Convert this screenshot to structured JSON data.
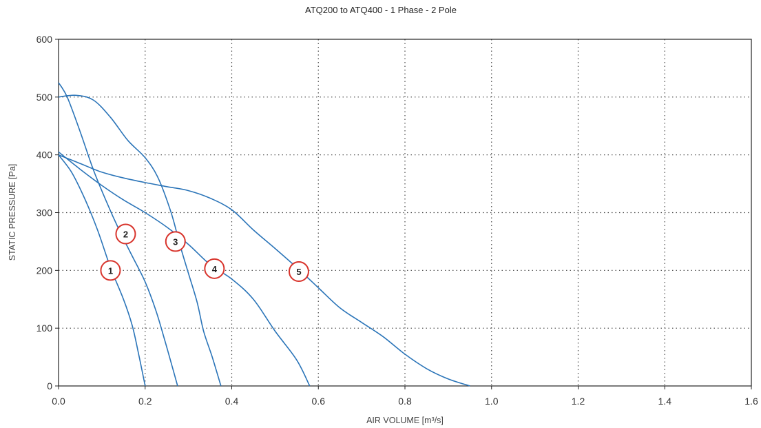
{
  "chart_data": {
    "type": "line",
    "title": "ATQ200 to ATQ400 - 1 Phase - 2 Pole",
    "xlabel": "AIR VOLUME [m³/s]",
    "ylabel": "STATIC PRESSURE [Pa]",
    "xlim": [
      0,
      1.6
    ],
    "ylim": [
      0,
      600
    ],
    "xticks": [
      0,
      0.2,
      0.4,
      0.6,
      0.8,
      1.0,
      1.2,
      1.4,
      1.6
    ],
    "yticks": [
      0,
      100,
      200,
      300,
      400,
      500,
      600
    ],
    "xtick_labels": [
      "0.0",
      "0.2",
      "0.4",
      "0.6",
      "0.8",
      "1.0",
      "1.2",
      "1.4",
      "1.6"
    ],
    "ytick_labels": [
      "0",
      "100",
      "200",
      "300",
      "400",
      "500",
      "600"
    ],
    "grid": true,
    "line_color": "#2a74b8",
    "marker_color": "#d8342c",
    "series": [
      {
        "name": "1",
        "label_at": [
          0.12,
          200
        ],
        "points": [
          [
            0,
            400
          ],
          [
            0.03,
            370
          ],
          [
            0.06,
            325
          ],
          [
            0.09,
            270
          ],
          [
            0.12,
            205
          ],
          [
            0.15,
            150
          ],
          [
            0.17,
            105
          ],
          [
            0.185,
            55
          ],
          [
            0.2,
            0
          ]
        ]
      },
      {
        "name": "2",
        "label_at": [
          0.155,
          263
        ],
        "points": [
          [
            0,
            525
          ],
          [
            0.02,
            500
          ],
          [
            0.05,
            440
          ],
          [
            0.08,
            375
          ],
          [
            0.11,
            320
          ],
          [
            0.14,
            270
          ],
          [
            0.17,
            225
          ],
          [
            0.2,
            180
          ],
          [
            0.225,
            130
          ],
          [
            0.245,
            80
          ],
          [
            0.262,
            35
          ],
          [
            0.275,
            0
          ]
        ]
      },
      {
        "name": "3",
        "label_at": [
          0.27,
          250
        ],
        "points": [
          [
            0,
            500
          ],
          [
            0.04,
            503
          ],
          [
            0.08,
            495
          ],
          [
            0.12,
            465
          ],
          [
            0.16,
            425
          ],
          [
            0.2,
            395
          ],
          [
            0.23,
            360
          ],
          [
            0.26,
            300
          ],
          [
            0.28,
            245
          ],
          [
            0.3,
            195
          ],
          [
            0.32,
            145
          ],
          [
            0.335,
            95
          ],
          [
            0.355,
            50
          ],
          [
            0.375,
            0
          ]
        ]
      },
      {
        "name": "4",
        "label_at": [
          0.36,
          203
        ],
        "points": [
          [
            0,
            405
          ],
          [
            0.05,
            375
          ],
          [
            0.1,
            347
          ],
          [
            0.15,
            322
          ],
          [
            0.2,
            300
          ],
          [
            0.25,
            275
          ],
          [
            0.3,
            245
          ],
          [
            0.35,
            210
          ],
          [
            0.4,
            185
          ],
          [
            0.45,
            150
          ],
          [
            0.5,
            95
          ],
          [
            0.55,
            45
          ],
          [
            0.58,
            0
          ]
        ]
      },
      {
        "name": "5",
        "label_at": [
          0.555,
          198
        ],
        "points": [
          [
            0,
            400
          ],
          [
            0.05,
            385
          ],
          [
            0.1,
            370
          ],
          [
            0.15,
            360
          ],
          [
            0.2,
            352
          ],
          [
            0.25,
            345
          ],
          [
            0.3,
            338
          ],
          [
            0.35,
            325
          ],
          [
            0.4,
            305
          ],
          [
            0.45,
            270
          ],
          [
            0.5,
            238
          ],
          [
            0.55,
            205
          ],
          [
            0.6,
            170
          ],
          [
            0.65,
            135
          ],
          [
            0.7,
            110
          ],
          [
            0.75,
            85
          ],
          [
            0.8,
            55
          ],
          [
            0.85,
            30
          ],
          [
            0.9,
            12
          ],
          [
            0.95,
            0
          ]
        ]
      }
    ]
  }
}
